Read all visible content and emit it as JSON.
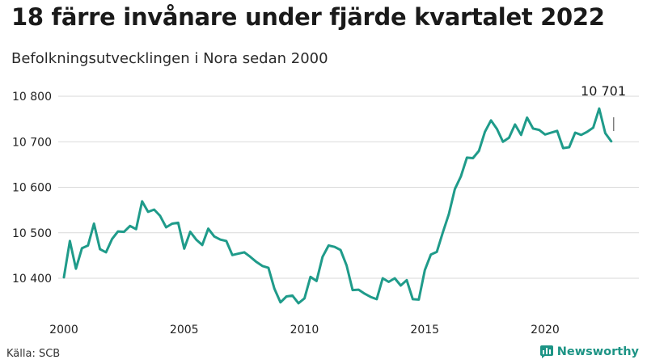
{
  "header": {
    "title": "18 färre invånare under fjärde kvartalet 2022",
    "subtitle": "Befolkningsutvecklingen i Nora sedan 2000"
  },
  "footer": {
    "source": "Källa: SCB",
    "brand": "Newsworthy"
  },
  "colors": {
    "line": "#1f9b8a",
    "grid": "#d9d9d9",
    "brand": "#1d9485",
    "text": "#222222"
  },
  "icons": {
    "brand_logo": "bar-chart-speech-bubble-icon"
  },
  "chart_data": {
    "type": "line",
    "title": "18 färre invånare under fjärde kvartalet 2022",
    "subtitle": "Befolkningsutvecklingen i Nora sedan 2000",
    "xlabel": "",
    "ylabel": "",
    "frequency": "quarterly",
    "x_ticks": [
      2000,
      2005,
      2010,
      2015,
      2020
    ],
    "y_ticks": [
      10400,
      10500,
      10600,
      10700,
      10800
    ],
    "y_tick_labels": [
      "10 400",
      "10 500",
      "10 600",
      "10 700",
      "10 800"
    ],
    "ylim": [
      10335,
      10815
    ],
    "grid": true,
    "legend": "none",
    "annotation": {
      "label": "10 701",
      "x": 2022.75,
      "y": 10701
    },
    "series": [
      {
        "name": "",
        "x": [
          2000.0,
          2000.25,
          2000.5,
          2000.75,
          2001.0,
          2001.25,
          2001.5,
          2001.75,
          2002.0,
          2002.25,
          2002.5,
          2002.75,
          2003.0,
          2003.25,
          2003.5,
          2003.75,
          2004.0,
          2004.25,
          2004.5,
          2004.75,
          2005.0,
          2005.25,
          2005.5,
          2005.75,
          2006.0,
          2006.25,
          2006.5,
          2006.75,
          2007.0,
          2007.25,
          2007.5,
          2007.75,
          2008.0,
          2008.25,
          2008.5,
          2008.75,
          2009.0,
          2009.25,
          2009.5,
          2009.75,
          2010.0,
          2010.25,
          2010.5,
          2010.75,
          2011.0,
          2011.25,
          2011.5,
          2011.75,
          2012.0,
          2012.25,
          2012.5,
          2012.75,
          2013.0,
          2013.25,
          2013.5,
          2013.75,
          2014.0,
          2014.25,
          2014.5,
          2014.75,
          2015.0,
          2015.25,
          2015.5,
          2015.75,
          2016.0,
          2016.25,
          2016.5,
          2016.75,
          2017.0,
          2017.25,
          2017.5,
          2017.75,
          2018.0,
          2018.25,
          2018.5,
          2018.75,
          2019.0,
          2019.25,
          2019.5,
          2019.75,
          2020.0,
          2020.25,
          2020.5,
          2020.75,
          2021.0,
          2021.25,
          2021.5,
          2021.75,
          2022.0,
          2022.25,
          2022.5,
          2022.75
        ],
        "values": [
          10402,
          10482,
          10421,
          10466,
          10472,
          10520,
          10464,
          10457,
          10486,
          10503,
          10502,
          10515,
          10508,
          10569,
          10546,
          10551,
          10537,
          10512,
          10520,
          10522,
          10465,
          10502,
          10485,
          10473,
          10509,
          10492,
          10485,
          10482,
          10451,
          10454,
          10457,
          10447,
          10436,
          10427,
          10423,
          10377,
          10347,
          10360,
          10362,
          10345,
          10356,
          10403,
          10394,
          10447,
          10472,
          10469,
          10462,
          10428,
          10374,
          10375,
          10366,
          10359,
          10354,
          10400,
          10392,
          10400,
          10384,
          10396,
          10354,
          10353,
          10418,
          10452,
          10458,
          10501,
          10541,
          10596,
          10624,
          10665,
          10664,
          10680,
          10722,
          10747,
          10728,
          10700,
          10709,
          10738,
          10715,
          10753,
          10729,
          10726,
          10716,
          10720,
          10724,
          10686,
          10688,
          10720,
          10715,
          10722,
          10731,
          10773,
          10719,
          10701
        ]
      }
    ]
  }
}
